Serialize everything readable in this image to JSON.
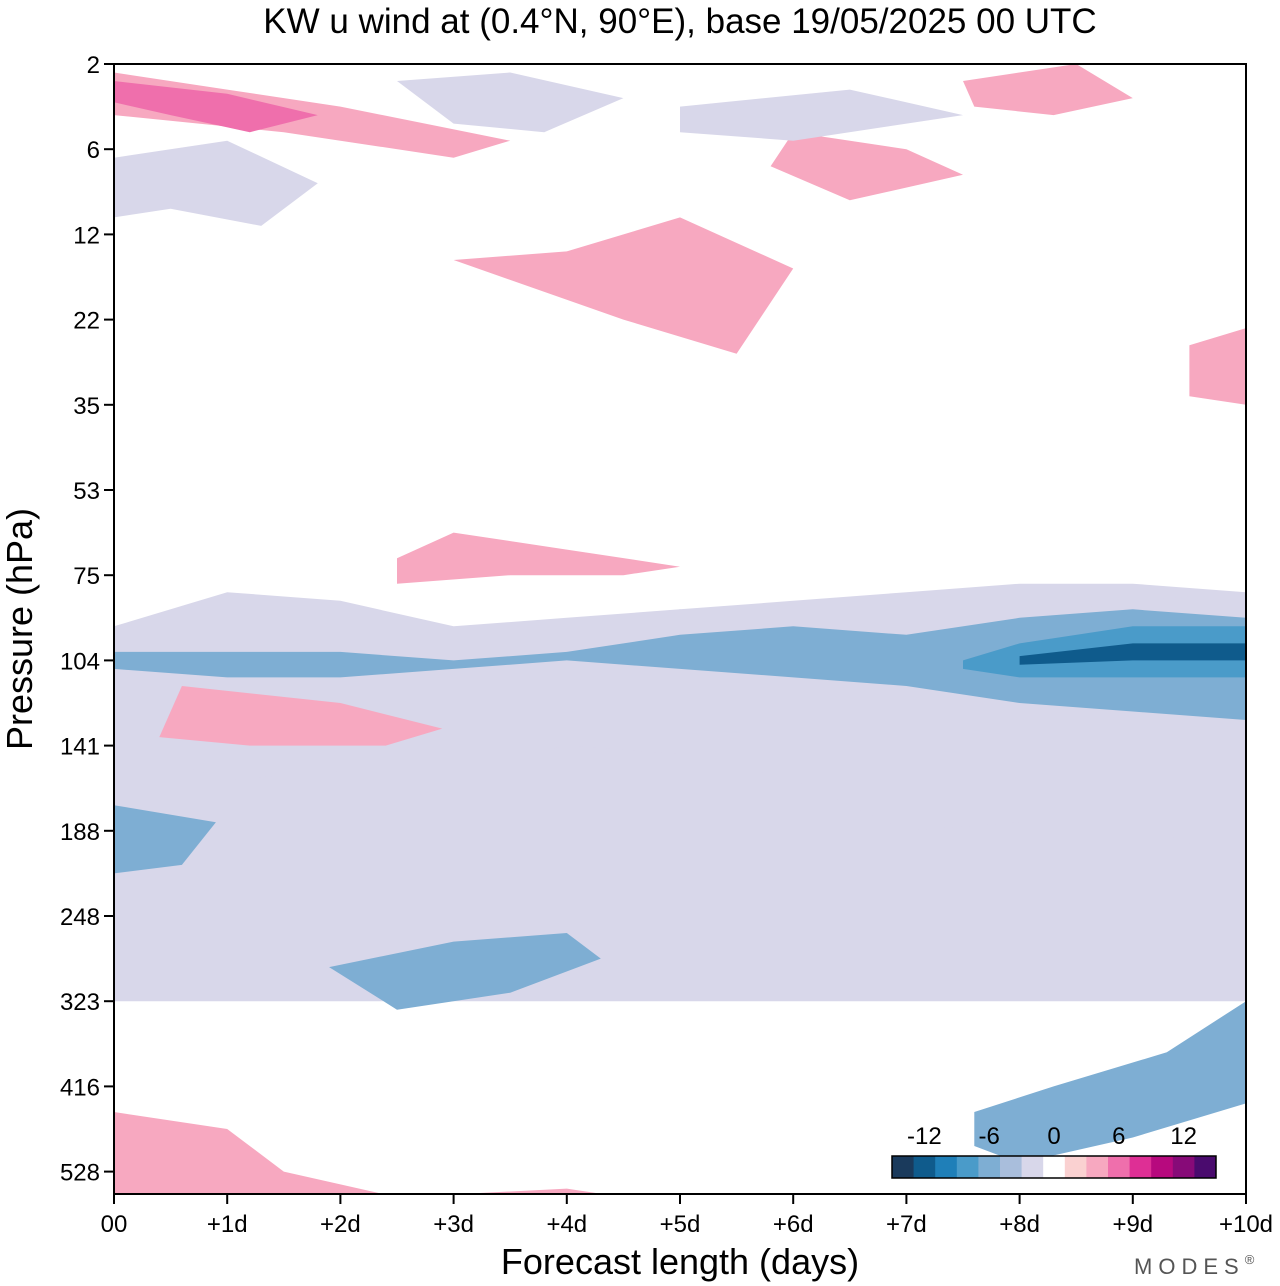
{
  "chart_data": {
    "type": "heatmap",
    "title": "KW u wind at (0.4°N, 90°E),  base 19/05/2025  00 UTC",
    "xlabel": "Forecast length (days)",
    "ylabel": "Pressure (hPa)",
    "x_ticks": [
      "00",
      "+1d",
      "+2d",
      "+3d",
      "+4d",
      "+5d",
      "+6d",
      "+7d",
      "+8d",
      "+9d",
      "+10d"
    ],
    "x_range": [
      0,
      10
    ],
    "y_ticks": [
      2,
      6,
      12,
      22,
      35,
      53,
      75,
      104,
      141,
      188,
      248,
      323,
      416,
      528
    ],
    "y_scale": "categorical-levels",
    "y_range_hpa": [
      2,
      700
    ],
    "grid": false,
    "colorbar": {
      "placement": "bottom-right",
      "labels": [
        "-12",
        "-6",
        "0",
        "6",
        "12"
      ],
      "label_values": [
        -12,
        -6,
        0,
        6,
        12
      ],
      "min": -15,
      "max": 15,
      "step": 2,
      "colors": [
        "#1a3a5c",
        "#0f5b8c",
        "#1f7fb8",
        "#4a9bc9",
        "#7eaed3",
        "#a9bedc",
        "#d8d7ea",
        "#ffffff",
        "#fad1d1",
        "#f7a8c0",
        "#ef6fac",
        "#de2f95",
        "#b7097e",
        "#870a78",
        "#4a0b6e"
      ]
    },
    "contours": [
      {
        "value": -3,
        "points": [
          [
            0,
            7.9
          ],
          [
            1,
            7.2
          ],
          [
            2,
            7.2
          ],
          [
            3,
            6.8
          ],
          [
            4,
            6.7
          ],
          [
            5,
            6.4
          ],
          [
            6,
            6.3
          ],
          [
            7,
            6.2
          ],
          [
            8,
            6.1
          ],
          [
            9,
            6.1
          ],
          [
            10,
            6.2
          ],
          [
            10,
            11
          ],
          [
            0,
            11
          ]
        ]
      },
      {
        "value": -3,
        "points": [
          [
            0,
            6.6
          ],
          [
            1,
            6.2
          ],
          [
            2,
            6.3
          ],
          [
            3,
            6.6
          ],
          [
            4,
            6.5
          ],
          [
            5,
            6.4
          ],
          [
            6,
            6.6
          ],
          [
            7,
            6.8
          ],
          [
            8,
            6.5
          ],
          [
            9,
            6.3
          ],
          [
            10,
            6.2
          ],
          [
            10,
            9.4
          ],
          [
            9,
            8.9
          ],
          [
            8,
            8.9
          ],
          [
            7,
            9.0
          ],
          [
            6,
            8.4
          ],
          [
            5,
            8.1
          ],
          [
            4,
            8.0
          ],
          [
            3,
            8.3
          ],
          [
            2,
            8.3
          ],
          [
            1,
            8.4
          ],
          [
            0,
            8.0
          ]
        ]
      },
      {
        "value": -6,
        "points": [
          [
            0,
            6.9
          ],
          [
            1,
            6.9
          ],
          [
            2,
            6.9
          ],
          [
            3,
            7.0
          ],
          [
            4,
            6.9
          ],
          [
            5,
            6.7
          ],
          [
            6,
            6.6
          ],
          [
            7,
            6.7
          ],
          [
            8,
            6.5
          ],
          [
            9,
            6.4
          ],
          [
            10,
            6.5
          ],
          [
            10,
            7.7
          ],
          [
            9,
            7.6
          ],
          [
            8,
            7.5
          ],
          [
            7,
            7.3
          ],
          [
            6,
            7.2
          ],
          [
            5,
            7.1
          ],
          [
            4,
            7.0
          ],
          [
            3,
            7.1
          ],
          [
            2,
            7.2
          ],
          [
            1,
            7.2
          ],
          [
            0,
            7.1
          ]
        ]
      },
      {
        "value": -9,
        "points": [
          [
            7.5,
            7.0
          ],
          [
            8,
            6.8
          ],
          [
            9,
            6.6
          ],
          [
            10,
            6.6
          ],
          [
            10,
            7.2
          ],
          [
            9,
            7.2
          ],
          [
            8,
            7.2
          ],
          [
            7.5,
            7.1
          ]
        ]
      },
      {
        "value": -12,
        "points": [
          [
            8,
            6.95
          ],
          [
            9,
            6.8
          ],
          [
            10,
            6.8
          ],
          [
            10,
            7.0
          ],
          [
            9,
            7.0
          ],
          [
            8,
            7.05
          ]
        ]
      },
      {
        "value": -6,
        "points": [
          [
            1.9,
            10.6
          ],
          [
            3,
            10.3
          ],
          [
            4,
            10.2
          ],
          [
            4.3,
            10.5
          ],
          [
            3.5,
            10.9
          ],
          [
            2.5,
            11.1
          ]
        ]
      },
      {
        "value": -6,
        "points": [
          [
            7.6,
            12.3
          ],
          [
            8.3,
            12.0
          ],
          [
            9.3,
            11.6
          ],
          [
            10,
            11.0
          ],
          [
            10,
            12.2
          ],
          [
            9,
            12.6
          ],
          [
            8,
            12.9
          ],
          [
            7.6,
            12.7
          ]
        ]
      },
      {
        "value": -6,
        "points": [
          [
            0,
            8.7
          ],
          [
            0.9,
            8.9
          ],
          [
            0.6,
            9.4
          ],
          [
            0,
            9.5
          ]
        ]
      },
      {
        "value": 3,
        "points": [
          [
            0.6,
            7.3
          ],
          [
            2,
            7.5
          ],
          [
            2.9,
            7.8
          ],
          [
            2.4,
            8.0
          ],
          [
            1.2,
            8.0
          ],
          [
            0.4,
            7.9
          ]
        ]
      },
      {
        "value": 3,
        "points": [
          [
            2.5,
            5.8
          ],
          [
            3,
            5.5
          ],
          [
            4,
            5.7
          ],
          [
            5,
            5.9
          ],
          [
            4.5,
            6.0
          ],
          [
            3.5,
            6.0
          ],
          [
            2.5,
            6.1
          ]
        ]
      },
      {
        "value": 3,
        "points": [
          [
            3,
            2.3
          ],
          [
            4,
            2.2
          ],
          [
            5,
            1.8
          ],
          [
            6,
            2.4
          ],
          [
            5.5,
            3.4
          ],
          [
            4.5,
            3.0
          ]
        ]
      },
      {
        "value": 3,
        "points": [
          [
            6,
            0.8
          ],
          [
            7,
            1.0
          ],
          [
            7.5,
            1.3
          ],
          [
            6.5,
            1.6
          ],
          [
            5.8,
            1.2
          ]
        ]
      },
      {
        "value": 3,
        "points": [
          [
            0,
            12.3
          ],
          [
            1,
            12.5
          ],
          [
            1.5,
            13.0
          ],
          [
            2.5,
            13.3
          ],
          [
            4,
            13.2
          ],
          [
            5,
            13.4
          ],
          [
            5.6,
            14
          ],
          [
            0,
            14
          ]
        ]
      },
      {
        "value": 3,
        "points": [
          [
            0,
            0.1
          ],
          [
            1,
            0.3
          ],
          [
            2,
            0.5
          ],
          [
            3.5,
            0.9
          ],
          [
            3,
            1.1
          ],
          [
            1.5,
            0.8
          ],
          [
            0,
            0.6
          ]
        ]
      },
      {
        "value": 6,
        "points": [
          [
            0,
            0.2
          ],
          [
            1,
            0.35
          ],
          [
            1.8,
            0.6
          ],
          [
            1.2,
            0.8
          ],
          [
            0.5,
            0.6
          ],
          [
            0,
            0.45
          ]
        ]
      },
      {
        "value": -3,
        "points": [
          [
            0,
            1.1
          ],
          [
            1,
            0.9
          ],
          [
            1.8,
            1.4
          ],
          [
            1.3,
            1.9
          ],
          [
            0.5,
            1.7
          ],
          [
            0,
            1.8
          ]
        ]
      },
      {
        "value": -3,
        "points": [
          [
            2.5,
            0.2
          ],
          [
            3.5,
            0.1
          ],
          [
            4.5,
            0.4
          ],
          [
            3.8,
            0.8
          ],
          [
            3,
            0.7
          ]
        ]
      },
      {
        "value": -3,
        "points": [
          [
            5,
            0.5
          ],
          [
            6.5,
            0.3
          ],
          [
            7.5,
            0.6
          ],
          [
            6,
            0.9
          ],
          [
            5,
            0.8
          ]
        ]
      },
      {
        "value": 3,
        "points": [
          [
            7.5,
            0.2
          ],
          [
            8.5,
            0.0
          ],
          [
            9,
            0.4
          ],
          [
            8.3,
            0.6
          ],
          [
            7.6,
            0.5
          ]
        ]
      },
      {
        "value": 3,
        "points": [
          [
            9.5,
            3.3
          ],
          [
            10,
            3.1
          ],
          [
            10,
            4.0
          ],
          [
            9.5,
            3.9
          ]
        ]
      }
    ]
  },
  "branding": {
    "text": "MODES",
    "mark": "®"
  }
}
